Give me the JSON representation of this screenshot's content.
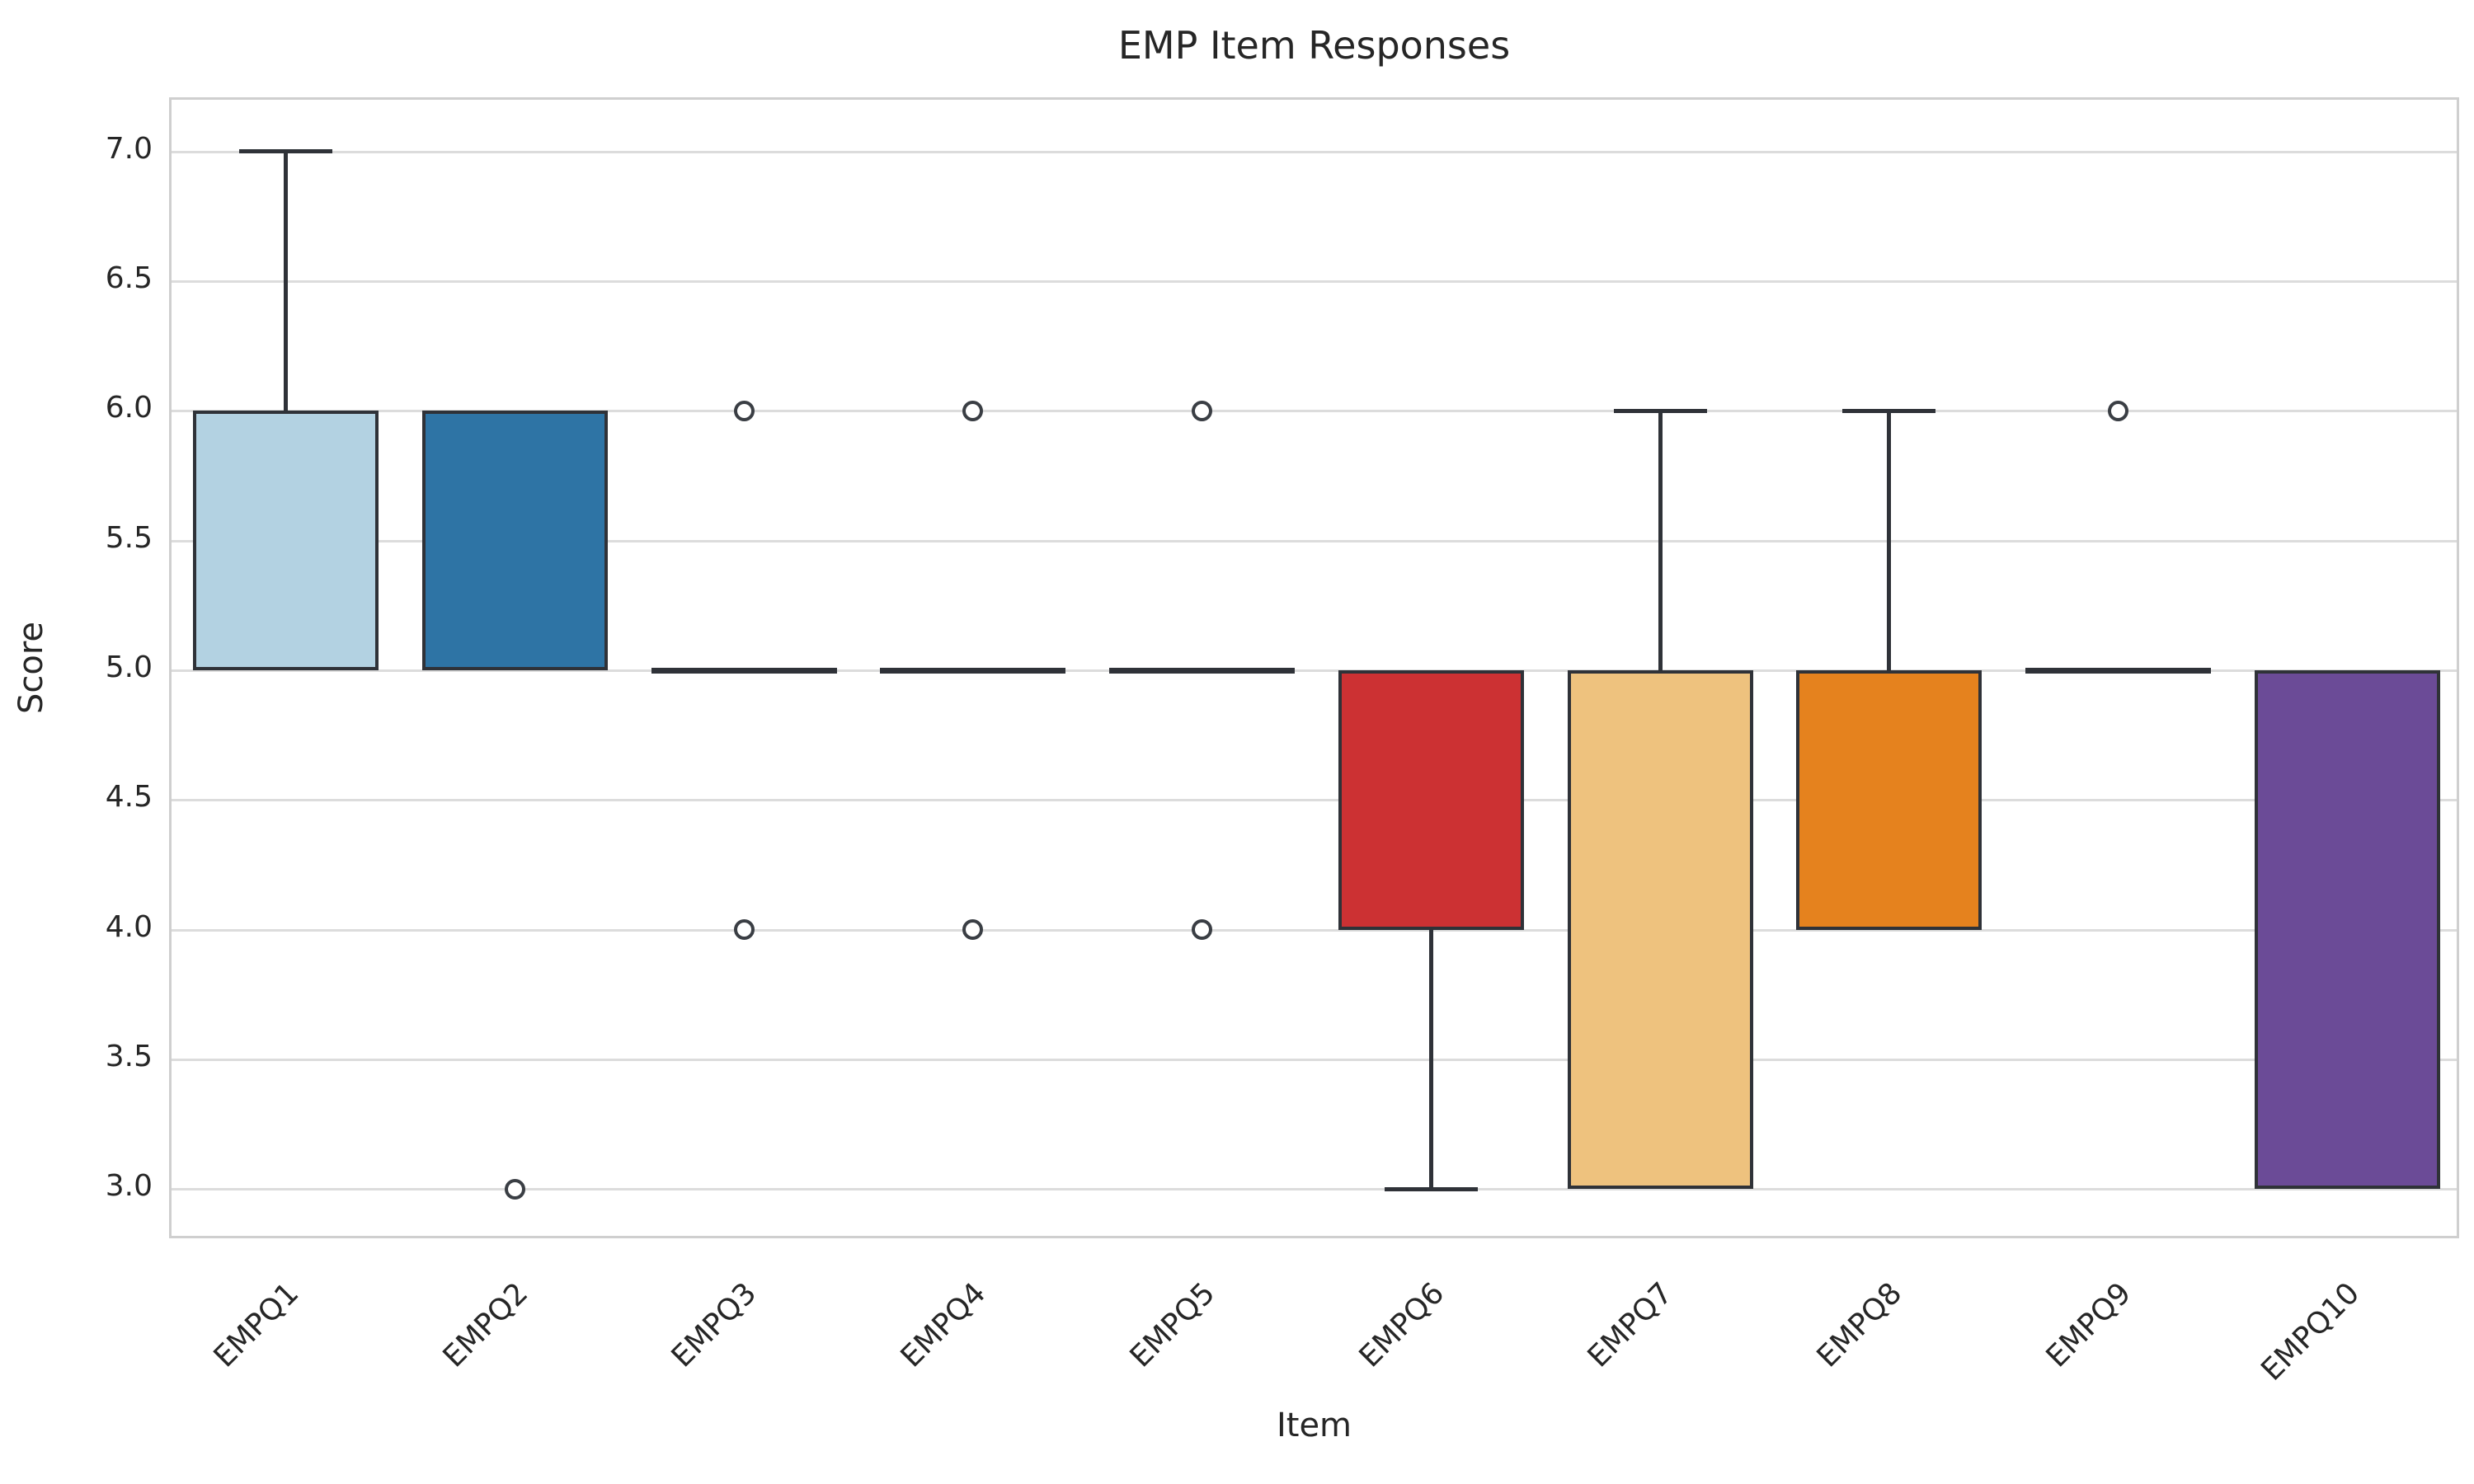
{
  "chart_data": {
    "type": "box",
    "title": "EMP Item Responses",
    "xlabel": "Item",
    "ylabel": "Score",
    "ylim": [
      2.8,
      7.2
    ],
    "ytick_values": [
      3.0,
      3.5,
      4.0,
      4.5,
      5.0,
      5.5,
      6.0,
      6.5,
      7.0
    ],
    "grid": "horizontal",
    "legend": "none",
    "categories": [
      "EMPQ1",
      "EMPQ2",
      "EMPQ3",
      "EMPQ4",
      "EMPQ5",
      "EMPQ6",
      "EMPQ7",
      "EMPQ8",
      "EMPQ9",
      "EMPQ10"
    ],
    "boxes": [
      {
        "label": "EMPQ1",
        "fill_color": "#b3d2e2",
        "q1": 5,
        "median": 5,
        "q3": 6,
        "whisker_low": 5,
        "whisker_high": 7,
        "outliers": []
      },
      {
        "label": "EMPQ2",
        "fill_color": "#2e74a5",
        "q1": 5,
        "median": 5,
        "q3": 6,
        "whisker_low": 5,
        "whisker_high": 6,
        "outliers": [
          3
        ]
      },
      {
        "label": "EMPQ3",
        "fill_color": "#b8d998",
        "q1": 5,
        "median": 5,
        "q3": 5,
        "whisker_low": 5,
        "whisker_high": 5,
        "outliers": [
          6,
          4
        ]
      },
      {
        "label": "EMPQ4",
        "fill_color": "#4b9b44",
        "q1": 5,
        "median": 5,
        "q3": 5,
        "whisker_low": 5,
        "whisker_high": 5,
        "outliers": [
          6,
          4
        ]
      },
      {
        "label": "EMPQ5",
        "fill_color": "#f3a09d",
        "q1": 5,
        "median": 5,
        "q3": 5,
        "whisker_low": 5,
        "whisker_high": 5,
        "outliers": [
          6,
          4
        ]
      },
      {
        "label": "EMPQ6",
        "fill_color": "#cc3133",
        "q1": 4,
        "median": 5,
        "q3": 5,
        "whisker_low": 3,
        "whisker_high": 5,
        "outliers": []
      },
      {
        "label": "EMPQ7",
        "fill_color": "#eec27e",
        "q1": 3,
        "median": 5,
        "q3": 5,
        "whisker_low": 3,
        "whisker_high": 6,
        "outliers": []
      },
      {
        "label": "EMPQ8",
        "fill_color": "#e5821e",
        "q1": 4,
        "median": 5,
        "q3": 5,
        "whisker_low": 4,
        "whisker_high": 6,
        "outliers": []
      },
      {
        "label": "EMPQ9",
        "fill_color": "#c7b5d1",
        "q1": 5,
        "median": 5,
        "q3": 5,
        "whisker_low": 5,
        "whisker_high": 5,
        "outliers": [
          6
        ]
      },
      {
        "label": "EMPQ10",
        "fill_color": "#6b4b97",
        "q1": 3,
        "median": 5,
        "q3": 5,
        "whisker_low": 3,
        "whisker_high": 5,
        "outliers": []
      }
    ],
    "style": {
      "box_edge_color": "#2f3238",
      "grid_color": "#dcdcdc",
      "spine_color": "#cfcfcf",
      "text_color": "#262626",
      "outlier_marker": "open-circle",
      "background": "#ffffff"
    }
  }
}
